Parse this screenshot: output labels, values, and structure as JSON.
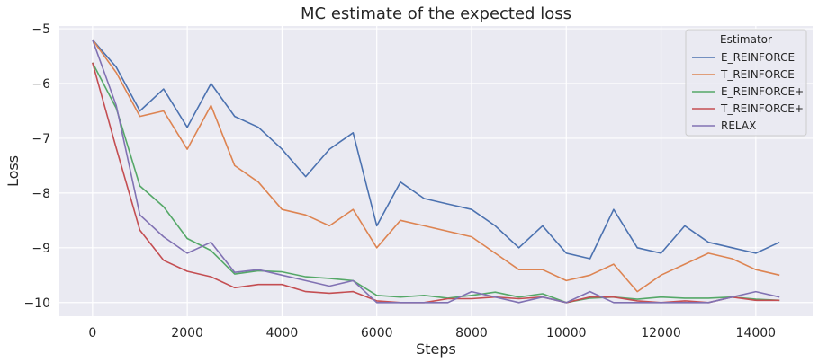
{
  "chart_data": {
    "type": "line",
    "title": "MC estimate of the expected loss",
    "xlabel": "Steps",
    "ylabel": "Loss",
    "xlim": [
      -700,
      15200
    ],
    "ylim": [
      -10.25,
      -4.95
    ],
    "xticks": [
      0,
      2000,
      4000,
      6000,
      8000,
      10000,
      12000,
      14000
    ],
    "yticks": [
      -5,
      -6,
      -7,
      -8,
      -9,
      -10
    ],
    "xtick_labels": [
      "0",
      "2000",
      "4000",
      "6000",
      "8000",
      "10000",
      "12000",
      "14000"
    ],
    "ytick_labels": [
      "−5",
      "−6",
      "−7",
      "−8",
      "−9",
      "−10"
    ],
    "grid": true,
    "background": "#EAEAF2",
    "legend": {
      "title": "Estimator",
      "placement": "top-right"
    },
    "x": [
      0,
      500,
      1000,
      1500,
      2000,
      2500,
      3000,
      3500,
      4000,
      4500,
      5000,
      5500,
      6000,
      6500,
      7000,
      7500,
      8000,
      8500,
      9000,
      9500,
      10000,
      10500,
      11000,
      11500,
      12000,
      12500,
      13000,
      13500,
      14000,
      14500
    ],
    "series": [
      {
        "name": "E_REINFORCE",
        "color": "#4C72B0",
        "values": [
          -5.2,
          -5.7,
          -6.5,
          -6.1,
          -6.8,
          -6.0,
          -6.6,
          -6.8,
          -7.2,
          -7.7,
          -7.2,
          -6.9,
          -8.6,
          -7.8,
          -8.1,
          -8.2,
          -8.3,
          -8.6,
          -9.0,
          -8.6,
          -9.1,
          -9.2,
          -8.3,
          -9.0,
          -9.1,
          -8.6,
          -8.9,
          -9.0,
          -9.1,
          -8.9
        ]
      },
      {
        "name": "T_REINFORCE",
        "color": "#DD8452",
        "values": [
          -5.2,
          -5.8,
          -6.6,
          -6.5,
          -7.2,
          -6.4,
          -7.5,
          -7.8,
          -8.3,
          -8.4,
          -8.6,
          -8.3,
          -9.0,
          -8.5,
          -8.6,
          -8.7,
          -8.8,
          -9.1,
          -9.4,
          -9.4,
          -9.6,
          -9.5,
          -9.3,
          -9.8,
          -9.5,
          -9.3,
          -9.1,
          -9.2,
          -9.4,
          -9.5
        ]
      },
      {
        "name": "E_REINFORCE+",
        "color": "#55A868",
        "values": [
          -5.62,
          -6.45,
          -7.87,
          -8.25,
          -8.83,
          -9.05,
          -9.48,
          -9.42,
          -9.44,
          -9.53,
          -9.56,
          -9.6,
          -9.87,
          -9.9,
          -9.87,
          -9.92,
          -9.87,
          -9.81,
          -9.9,
          -9.84,
          -10.0,
          -9.92,
          -9.9,
          -9.94,
          -9.9,
          -9.92,
          -9.92,
          -9.9,
          -9.94,
          -9.96
        ]
      },
      {
        "name": "T_REINFORCE+",
        "color": "#C44E52",
        "values": [
          -5.62,
          -7.18,
          -8.68,
          -9.23,
          -9.43,
          -9.53,
          -9.73,
          -9.67,
          -9.67,
          -9.8,
          -9.83,
          -9.8,
          -9.97,
          -10.0,
          -10.0,
          -9.93,
          -9.93,
          -9.9,
          -9.93,
          -9.9,
          -10.0,
          -9.9,
          -9.9,
          -9.97,
          -10.0,
          -9.97,
          -10.0,
          -9.9,
          -9.96,
          -9.96
        ]
      },
      {
        "name": "RELAX",
        "color": "#8172B3",
        "values": [
          -5.2,
          -6.4,
          -8.4,
          -8.8,
          -9.1,
          -8.9,
          -9.45,
          -9.4,
          -9.5,
          -9.6,
          -9.7,
          -9.6,
          -10.0,
          -10.0,
          -10.0,
          -10.0,
          -9.8,
          -9.9,
          -10.0,
          -9.9,
          -10.0,
          -9.8,
          -10.0,
          -10.0,
          -10.0,
          -10.0,
          -10.0,
          -9.9,
          -9.8,
          -9.9
        ]
      }
    ]
  }
}
